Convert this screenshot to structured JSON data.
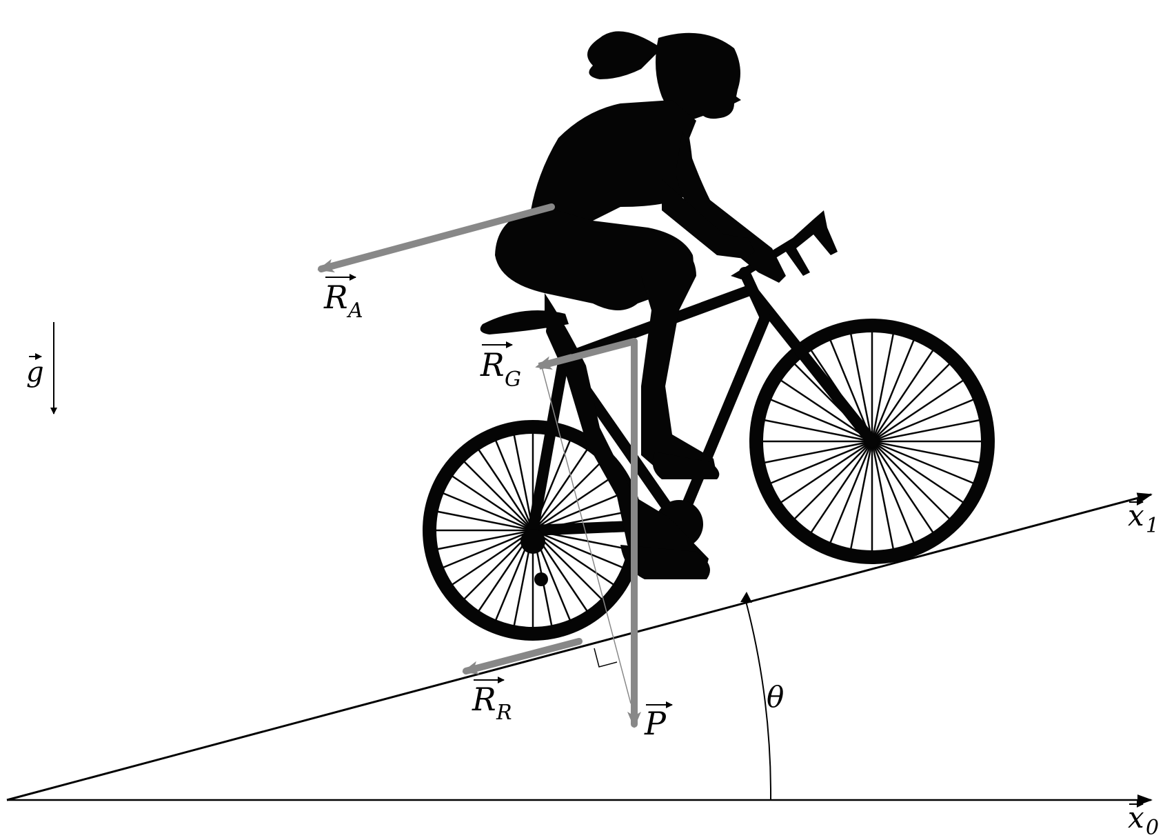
{
  "diagram": {
    "labels": {
      "gravity_symbol": "g",
      "air_resistance": {
        "main": "R",
        "sub": "A"
      },
      "ground_reaction": {
        "main": "R",
        "sub": "G"
      },
      "rolling_resistance": {
        "main": "R",
        "sub": "R"
      },
      "weight": {
        "main": "P",
        "sub": ""
      },
      "slope_axis": {
        "main": "x",
        "sub": "1"
      },
      "horizontal_axis": {
        "main": "x",
        "sub": "0"
      },
      "angle": "θ"
    },
    "colors": {
      "force_arrow": "#888888",
      "axis": "#000000",
      "silhouette": "#050505",
      "background": "#ffffff"
    },
    "icons": [
      "cyclist-silhouette",
      "bicycle-silhouette"
    ]
  }
}
